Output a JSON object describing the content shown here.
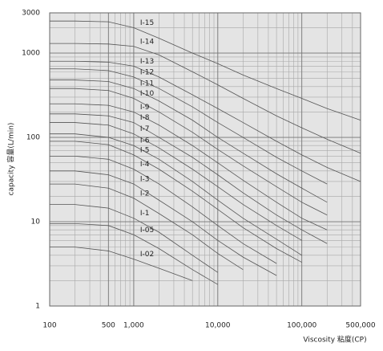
{
  "chart_data": {
    "type": "line",
    "x_label": "Viscosity 粘度(CP)",
    "y_label": "capacity 容量(L/min)",
    "x_scale": "log",
    "y_scale": "log",
    "grid": true,
    "minor_grid": true,
    "xlim": [
      100,
      500000
    ],
    "ylim": [
      1,
      3000
    ],
    "xticks": [
      100,
      500,
      {
        "value": 1000,
        "label": "1,000"
      },
      {
        "value": 10000,
        "label": "10,000"
      },
      {
        "value": 100000,
        "label": "100,000"
      },
      {
        "value": 500000,
        "label": "500,000"
      }
    ],
    "yticks": [
      1,
      10,
      100,
      1000,
      3000
    ],
    "x": [
      100,
      200,
      500,
      1000,
      2000,
      5000,
      10000,
      20000,
      50000,
      100000,
      200000,
      500000
    ],
    "series": [
      {
        "name": "I-15",
        "color": "#555555",
        "values": [
          2400,
          2400,
          2350,
          2000,
          1500,
          1000,
          750,
          550,
          380,
          290,
          220,
          160
        ]
      },
      {
        "name": "I-14",
        "color": "#555555",
        "values": [
          1300,
          1300,
          1280,
          1200,
          950,
          600,
          420,
          290,
          180,
          130,
          95,
          65
        ]
      },
      {
        "name": "I-13",
        "color": "#555555",
        "values": [
          800,
          800,
          780,
          700,
          520,
          320,
          220,
          150,
          90,
          62,
          44,
          30
        ]
      },
      {
        "name": "I-12",
        "color": "#555555",
        "values": [
          650,
          650,
          620,
          520,
          380,
          230,
          150,
          100,
          58,
          40,
          28,
          null
        ]
      },
      {
        "name": "I-11",
        "color": "#555555",
        "values": [
          480,
          480,
          460,
          380,
          270,
          160,
          100,
          65,
          37,
          25,
          17,
          null
        ]
      },
      {
        "name": "I-10",
        "color": "#555555",
        "values": [
          380,
          380,
          360,
          290,
          200,
          115,
          72,
          46,
          26,
          17,
          12,
          null
        ]
      },
      {
        "name": "I-9",
        "color": "#555555",
        "values": [
          250,
          250,
          240,
          200,
          140,
          80,
          50,
          31,
          17,
          11,
          8,
          null
        ]
      },
      {
        "name": "I-8",
        "color": "#555555",
        "values": [
          190,
          190,
          180,
          150,
          100,
          58,
          36,
          22,
          12,
          8,
          5.5,
          null
        ]
      },
      {
        "name": "I-7",
        "color": "#555555",
        "values": [
          150,
          150,
          140,
          110,
          75,
          42,
          26,
          16,
          9,
          6,
          null,
          null
        ]
      },
      {
        "name": "I-6",
        "color": "#555555",
        "values": [
          110,
          110,
          100,
          80,
          55,
          30,
          18,
          11,
          6.2,
          4,
          null,
          null
        ]
      },
      {
        "name": "I-5",
        "color": "#555555",
        "values": [
          90,
          90,
          82,
          62,
          42,
          23,
          14,
          8.5,
          4.8,
          3.3,
          null,
          null
        ]
      },
      {
        "name": "I-4",
        "color": "#555555",
        "values": [
          60,
          60,
          55,
          42,
          28,
          15,
          9,
          5.5,
          3.2,
          null,
          null,
          null
        ]
      },
      {
        "name": "I-3",
        "color": "#555555",
        "values": [
          40,
          40,
          36,
          28,
          18,
          10,
          6,
          3.8,
          2.3,
          null,
          null,
          null
        ]
      },
      {
        "name": "I-2",
        "color": "#555555",
        "values": [
          28,
          28,
          25,
          19,
          12.5,
          7,
          4.2,
          2.7,
          null,
          null,
          null,
          null
        ]
      },
      {
        "name": "I-1",
        "color": "#555555",
        "values": [
          16,
          16,
          14.5,
          11,
          7.5,
          4,
          2.5,
          null,
          null,
          null,
          null,
          null
        ]
      },
      {
        "name": "I-05",
        "color": "#555555",
        "values": [
          9.5,
          9.5,
          9,
          7,
          4.8,
          2.7,
          1.8,
          null,
          null,
          null,
          null,
          null
        ]
      },
      {
        "name": "I-02",
        "color": "#555555",
        "values": [
          5,
          5,
          4.5,
          3.6,
          2.8,
          2,
          null,
          null,
          null,
          null,
          null,
          null
        ]
      }
    ]
  }
}
